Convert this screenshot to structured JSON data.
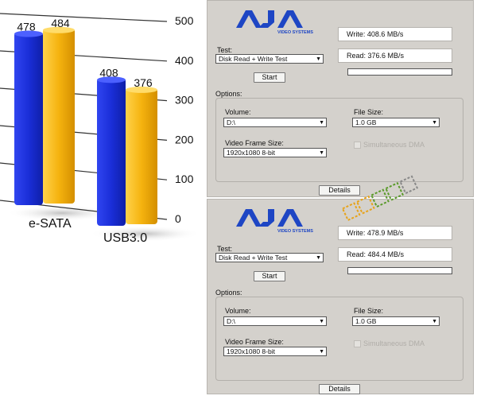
{
  "chart_data": {
    "type": "bar",
    "categories": [
      "e-SATA",
      "USB3.0"
    ],
    "values": [
      [
        478,
        484
      ],
      [
        408,
        376
      ]
    ],
    "ylim": [
      0,
      500
    ],
    "yticks": [
      "0",
      "100",
      "200",
      "300",
      "400",
      "500"
    ],
    "colors": [
      "#1b2fd6",
      "#f3b20f"
    ]
  },
  "panels": [
    {
      "logo_text": "AJA",
      "logo_sub": "VIDEO SYSTEMS",
      "test_label": "Test:",
      "test_value": "Disk Read + Write Test",
      "start_label": "Start",
      "write_text": "Write: 408.6 MB/s",
      "read_text": "Read: 376.6 MB/s",
      "options_label": "Options:",
      "volume_label": "Volume:",
      "volume_value": "D:\\",
      "filesize_label": "File Size:",
      "filesize_value": "1.0 GB",
      "vfs_label": "Video Frame Size:",
      "vfs_value": "1920x1080 8-bit",
      "sim_dma_label": "Simultaneous DMA",
      "details_label": "Details"
    },
    {
      "logo_text": "AJA",
      "logo_sub": "VIDEO SYSTEMS",
      "test_label": "Test:",
      "test_value": "Disk Read + Write Test",
      "start_label": "Start",
      "write_text": "Write: 478.9 MB/s",
      "read_text": "Read: 484.4 MB/s",
      "options_label": "Options:",
      "volume_label": "Volume:",
      "volume_value": "D:\\",
      "filesize_label": "File Size:",
      "filesize_value": "1.0 GB",
      "vfs_label": "Video Frame Size:",
      "vfs_value": "1920x1080 8-bit",
      "sim_dma_label": "Simultaneous DMA",
      "details_label": "Details"
    }
  ],
  "colors": {
    "panel_bg": "#d4d1cc",
    "logo_blue": "#1e46c4",
    "bar_blue": "#1b2fd6",
    "bar_orange": "#f3b20f"
  },
  "watermark": {
    "icon": "firmware-logo-icon"
  }
}
